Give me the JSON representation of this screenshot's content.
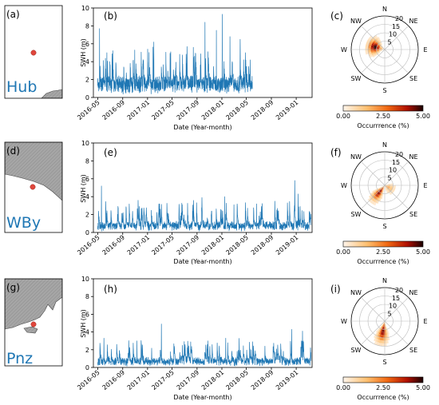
{
  "common": {
    "ylabel": "SWH (m)",
    "xlabel": "Date (Year-month)",
    "time_ticks": [
      "2016-05",
      "2016-09",
      "2017-01",
      "2017-05",
      "2017-09",
      "2018-01",
      "2018-05",
      "2018-09",
      "2019-01"
    ],
    "y_ticks": [
      "0",
      "2",
      "4",
      "6",
      "8",
      "10"
    ],
    "compass": [
      "N",
      "NE",
      "E",
      "SE",
      "S",
      "SW",
      "W",
      "NW"
    ],
    "ring_labels": [
      "5",
      "10",
      "15",
      "20"
    ],
    "colorbar_label": "Occurrrence (%)",
    "colorbar_ticks": [
      "0.00",
      "2.50",
      "5.00"
    ]
  },
  "colors": {
    "line": "#1f77b4",
    "site_label": "#1f77b4",
    "marker": "#e0463c",
    "land": "#a9a9a9"
  },
  "rows": [
    {
      "map_label": "(a)",
      "site": "Hub",
      "ts_label": "(b)",
      "rose_label": "(c)"
    },
    {
      "map_label": "(d)",
      "site": "WBy",
      "ts_label": "(e)",
      "rose_label": "(f)"
    },
    {
      "map_label": "(g)",
      "site": "Pnz",
      "ts_label": "(h)",
      "rose_label": "(i)"
    }
  ],
  "chart_data": [
    {
      "type": "line",
      "panel": "(b)",
      "series_id": "Hub",
      "x_range": [
        "2016-04-10",
        "2019-03-20"
      ],
      "ylim": [
        0,
        10
      ],
      "data_end": "2018-05-31",
      "mean": 1.8,
      "typical_peak": 4.5,
      "noise": 0.9,
      "anchor_peaks": [
        [
          "2016-05-10",
          7.7
        ],
        [
          "2016-06-15",
          5.0
        ],
        [
          "2016-10-30",
          5.3
        ],
        [
          "2017-02-01",
          6.2
        ],
        [
          "2017-04-25",
          5.1
        ],
        [
          "2017-08-20",
          4.6
        ],
        [
          "2017-10-10",
          8.4
        ],
        [
          "2017-12-05",
          7.5
        ],
        [
          "2018-01-03",
          9.3
        ],
        [
          "2018-02-10",
          6.8
        ],
        [
          "2018-04-01",
          6.5
        ],
        [
          "2018-05-20",
          4.2
        ]
      ]
    },
    {
      "type": "line",
      "panel": "(e)",
      "series_id": "WBy",
      "x_range": [
        "2016-04-10",
        "2019-03-20"
      ],
      "ylim": [
        0,
        10
      ],
      "data_end": "2019-03-15",
      "mean": 0.9,
      "typical_peak": 2.8,
      "noise": 0.55,
      "anchor_peaks": [
        [
          "2016-05-20",
          5.2
        ],
        [
          "2016-11-15",
          3.6
        ],
        [
          "2017-03-01",
          3.2
        ],
        [
          "2017-09-25",
          3.9
        ],
        [
          "2018-01-15",
          4.0
        ],
        [
          "2018-03-01",
          3.1
        ],
        [
          "2018-06-20",
          3.2
        ],
        [
          "2018-12-25",
          5.8
        ],
        [
          "2019-01-10",
          4.3
        ]
      ]
    },
    {
      "type": "line",
      "panel": "(h)",
      "series_id": "Pnz",
      "x_range": [
        "2016-04-10",
        "2019-03-20"
      ],
      "ylim": [
        0,
        10
      ],
      "data_end": "2019-03-15",
      "mean": 0.85,
      "typical_peak": 2.5,
      "noise": 0.5,
      "anchor_peaks": [
        [
          "2016-06-01",
          3.3
        ],
        [
          "2016-11-10",
          3.0
        ],
        [
          "2017-03-10",
          4.9
        ],
        [
          "2017-10-25",
          3.0
        ],
        [
          "2018-01-20",
          3.3
        ],
        [
          "2018-06-01",
          2.9
        ],
        [
          "2018-12-10",
          4.3
        ],
        [
          "2019-02-01",
          4.1
        ]
      ]
    },
    {
      "type": "heatmap",
      "subtype": "polar",
      "panel": "(c)",
      "series_id": "Hub",
      "r_range": [
        0,
        20
      ],
      "colorbar_range": [
        0,
        5
      ],
      "hotspots": [
        {
          "dir_deg": 285,
          "r": 6,
          "peak": 5.0,
          "spread_r": 2.5,
          "spread_deg": 22
        }
      ]
    },
    {
      "type": "heatmap",
      "subtype": "polar",
      "panel": "(f)",
      "series_id": "WBy",
      "r_range": [
        0,
        20
      ],
      "colorbar_range": [
        0,
        5
      ],
      "hotspots": [
        {
          "dir_deg": 218,
          "r": 5,
          "peak": 4.5,
          "spread_r": 3.5,
          "spread_deg": 12
        },
        {
          "dir_deg": 120,
          "r": 2,
          "peak": 2.0,
          "spread_r": 2.5,
          "spread_deg": 25
        }
      ]
    },
    {
      "type": "heatmap",
      "subtype": "polar",
      "panel": "(i)",
      "series_id": "Pnz",
      "r_range": [
        0,
        20
      ],
      "colorbar_range": [
        0,
        5
      ],
      "hotspots": [
        {
          "dir_deg": 190,
          "r": 6,
          "peak": 4.5,
          "spread_r": 4.0,
          "spread_deg": 12
        }
      ]
    }
  ]
}
